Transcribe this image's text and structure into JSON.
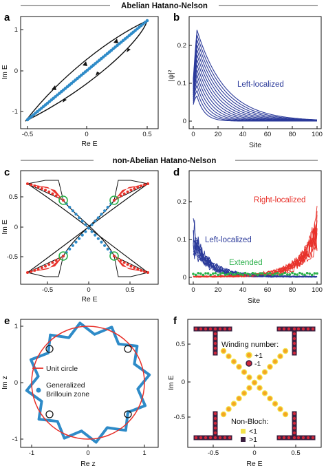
{
  "sections": {
    "top_title": "Abelian Hatano-Nelson",
    "mid_title": "non-Abelian Hatano-Nelson"
  },
  "colors": {
    "blue": "#2e8bc8",
    "dark_blue": "#2b3a9a",
    "red": "#e8312a",
    "green": "#2bb04a",
    "black": "#111111",
    "orange": "#f5a623",
    "yellow": "#f2e24a",
    "dark_purple": "#3b1f3f"
  },
  "panels": {
    "a": {
      "letter": "a",
      "xlabel": "Re E",
      "ylabel": "Im E",
      "xticks": [
        "-0.5",
        "0",
        "0.5"
      ],
      "yticks": [
        "1",
        "0",
        "-1"
      ]
    },
    "b": {
      "letter": "b",
      "xlabel": "Site",
      "ylabel": "|ψ|²",
      "xticks": [
        "0",
        "20",
        "40",
        "60",
        "80",
        "100"
      ],
      "yticks": [
        "0.2",
        "0.1",
        "0"
      ],
      "annotation": "Left-localized"
    },
    "c": {
      "letter": "c",
      "xlabel": "Re E",
      "ylabel": "Im E",
      "xticks": [
        "-0.5",
        "0",
        "0.5"
      ],
      "yticks": [
        "0.5",
        "0",
        "-0.5"
      ]
    },
    "d": {
      "letter": "d",
      "xlabel": "Site",
      "ylabel": "",
      "xticks": [
        "0",
        "20",
        "40",
        "60",
        "80",
        "100"
      ],
      "yticks": [
        "0.2",
        "0.1",
        "0"
      ],
      "annotation_right": "Right-localized",
      "annotation_left": "Left-localized",
      "annotation_ext": "Extended"
    },
    "e": {
      "letter": "e",
      "xlabel": "Re z",
      "ylabel": "Im z",
      "xticks": [
        "-1",
        "0",
        "1"
      ],
      "yticks": [
        "1",
        "0",
        "-1"
      ],
      "legend_unit": "Unit circle",
      "legend_gbz_1": "Generalized",
      "legend_gbz_2": "Brillouin zone"
    },
    "f": {
      "letter": "f",
      "xlabel": "Re E",
      "ylabel": "Im E",
      "xticks": [
        "-0.5",
        "0",
        "0.5"
      ],
      "yticks": [
        "0.5",
        "0",
        "-0.5"
      ],
      "winding_title": "Winding number:",
      "winding_pos": "+1",
      "winding_neg": "-1",
      "nonbloch_title": "Non-Bloch:",
      "nonbloch_lt": "<1",
      "nonbloch_gt": ">1"
    }
  }
}
